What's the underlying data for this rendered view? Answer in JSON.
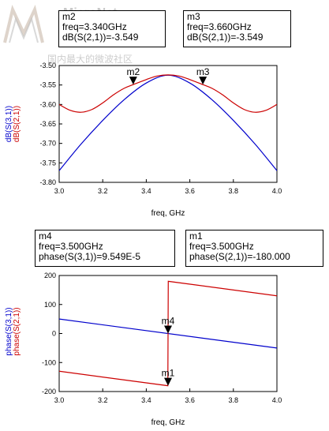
{
  "watermark": {
    "brand": "MicroNet",
    "tagline": "国内最大的微波社区"
  },
  "top_markers": [
    {
      "name": "m2",
      "line1": "freq=3.340GHz",
      "line2": "dB(S(2,1))=-3.549"
    },
    {
      "name": "m3",
      "line1": "freq=3.660GHz",
      "line2": "dB(S(2,1))=-3.549"
    }
  ],
  "bottom_markers": [
    {
      "name": "m4",
      "line1": "freq=3.500GHz",
      "line2": "phase(S(3,1))=9.549E-5"
    },
    {
      "name": "m1",
      "line1": "freq=3.500GHz",
      "line2": "phase(S(2,1))=-180.000"
    }
  ],
  "chart_data": [
    {
      "type": "line",
      "xlabel": "freq, GHz",
      "ylabels": [
        "dB(S(3,1))",
        "dB(S(2,1))"
      ],
      "xlim": [
        3.0,
        4.0
      ],
      "ylim": [
        -3.8,
        -3.5
      ],
      "xticks": [
        "3.0",
        "3.2",
        "3.4",
        "3.6",
        "3.8",
        "4.0"
      ],
      "yticks": [
        "-3.50",
        "-3.55",
        "-3.60",
        "-3.65",
        "-3.70",
        "-3.75",
        "-3.80"
      ],
      "grid": false,
      "series": [
        {
          "name": "dB(S(3,1))",
          "color": "#0000cc",
          "x": [
            3.0,
            3.1,
            3.2,
            3.3,
            3.4,
            3.5,
            3.6,
            3.7,
            3.8,
            3.9,
            4.0
          ],
          "y": [
            -3.77,
            -3.702,
            -3.641,
            -3.587,
            -3.545,
            -3.525,
            -3.545,
            -3.587,
            -3.641,
            -3.702,
            -3.77
          ]
        },
        {
          "name": "dB(S(2,1))",
          "color": "#cc0000",
          "x": [
            3.0,
            3.05,
            3.1,
            3.15,
            3.2,
            3.25,
            3.3,
            3.34,
            3.4,
            3.45,
            3.5,
            3.55,
            3.6,
            3.66,
            3.7,
            3.75,
            3.8,
            3.85,
            3.9,
            3.95,
            4.0
          ],
          "y": [
            -3.6,
            -3.615,
            -3.62,
            -3.613,
            -3.596,
            -3.575,
            -3.558,
            -3.549,
            -3.536,
            -3.527,
            -3.524,
            -3.527,
            -3.536,
            -3.549,
            -3.558,
            -3.575,
            -3.596,
            -3.613,
            -3.62,
            -3.615,
            -3.6
          ]
        }
      ],
      "markers": [
        {
          "name": "m2",
          "x": 3.34,
          "y": -3.549
        },
        {
          "name": "m3",
          "x": 3.66,
          "y": -3.549
        }
      ]
    },
    {
      "type": "line",
      "xlabel": "freq, GHz",
      "ylabels": [
        "phase(S(3,1))",
        "phase(S(2,1))"
      ],
      "xlim": [
        3.0,
        4.0
      ],
      "ylim": [
        -200,
        200
      ],
      "xticks": [
        "3.0",
        "3.2",
        "3.4",
        "3.6",
        "3.8",
        "4.0"
      ],
      "yticks": [
        "200",
        "100",
        "0",
        "-100",
        "-200"
      ],
      "grid": false,
      "series": [
        {
          "name": "phase(S(3,1))",
          "color": "#0000cc",
          "x": [
            3.0,
            4.0
          ],
          "y": [
            50,
            -50
          ]
        },
        {
          "name": "phase(S(2,1))",
          "color": "#cc0000",
          "x": [
            3.0,
            3.499,
            3.501,
            4.0
          ],
          "y": [
            -130,
            -180,
            180,
            130
          ]
        }
      ],
      "markers": [
        {
          "name": "m4",
          "x": 3.5,
          "y": 9.55e-05
        },
        {
          "name": "m1",
          "x": 3.5,
          "y": -180
        }
      ]
    }
  ]
}
